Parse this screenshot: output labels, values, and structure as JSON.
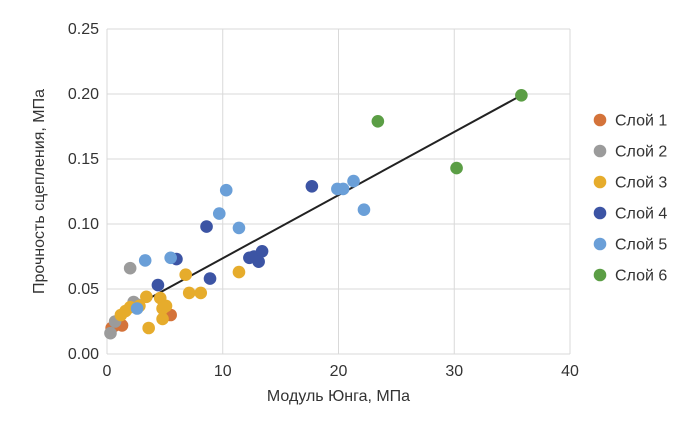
{
  "chart_data": {
    "type": "scatter",
    "xlabel": "Модуль Юнга, МПа",
    "ylabel": "Прочность сцепления, МПа",
    "xlim": [
      0,
      40
    ],
    "ylim": [
      0,
      0.25
    ],
    "x_ticks": [
      0,
      10,
      20,
      30,
      40
    ],
    "y_ticks": [
      0.0,
      0.05,
      0.1,
      0.15,
      0.2,
      0.25
    ],
    "x_tick_labels": [
      "0",
      "10",
      "20",
      "30",
      "40"
    ],
    "y_tick_labels": [
      "0.00",
      "0.05",
      "0.10",
      "0.15",
      "0.20",
      "0.25"
    ],
    "grid": true,
    "legend_position": "right",
    "trendline": {
      "x": [
        0.4,
        35.8
      ],
      "y": [
        0.027,
        0.199
      ]
    },
    "series": [
      {
        "name": "Слой 1",
        "color": "#d4733a",
        "points": [
          [
            0.4,
            0.02
          ],
          [
            0.7,
            0.022
          ],
          [
            1.3,
            0.022
          ],
          [
            5.5,
            0.03
          ]
        ]
      },
      {
        "name": "Слой 2",
        "color": "#9b9b9b",
        "points": [
          [
            0.3,
            0.016
          ],
          [
            0.7,
            0.025
          ],
          [
            2.0,
            0.066
          ],
          [
            2.3,
            0.04
          ],
          [
            2.6,
            0.038
          ]
        ]
      },
      {
        "name": "Слой 3",
        "color": "#e6ac2c",
        "points": [
          [
            1.2,
            0.03
          ],
          [
            1.6,
            0.033
          ],
          [
            2.0,
            0.036
          ],
          [
            2.8,
            0.037
          ],
          [
            3.4,
            0.044
          ],
          [
            3.6,
            0.02
          ],
          [
            4.6,
            0.043
          ],
          [
            4.8,
            0.035
          ],
          [
            4.8,
            0.027
          ],
          [
            5.1,
            0.037
          ],
          [
            6.8,
            0.061
          ],
          [
            7.1,
            0.047
          ],
          [
            8.1,
            0.047
          ],
          [
            11.4,
            0.063
          ]
        ]
      },
      {
        "name": "Слой 4",
        "color": "#3c54a4",
        "points": [
          [
            4.4,
            0.053
          ],
          [
            6.0,
            0.073
          ],
          [
            8.6,
            0.098
          ],
          [
            8.9,
            0.058
          ],
          [
            12.3,
            0.074
          ],
          [
            12.7,
            0.075
          ],
          [
            13.1,
            0.071
          ],
          [
            13.4,
            0.079
          ],
          [
            17.7,
            0.129
          ]
        ]
      },
      {
        "name": "Слой 5",
        "color": "#6a9fd8",
        "points": [
          [
            2.6,
            0.035
          ],
          [
            3.3,
            0.072
          ],
          [
            5.5,
            0.074
          ],
          [
            9.7,
            0.108
          ],
          [
            10.3,
            0.126
          ],
          [
            11.4,
            0.097
          ],
          [
            19.9,
            0.127
          ],
          [
            20.4,
            0.127
          ],
          [
            21.3,
            0.133
          ],
          [
            22.2,
            0.111
          ]
        ]
      },
      {
        "name": "Слой 6",
        "color": "#5b9e45",
        "points": [
          [
            23.4,
            0.179
          ],
          [
            30.2,
            0.143
          ],
          [
            35.8,
            0.199
          ]
        ]
      }
    ]
  }
}
